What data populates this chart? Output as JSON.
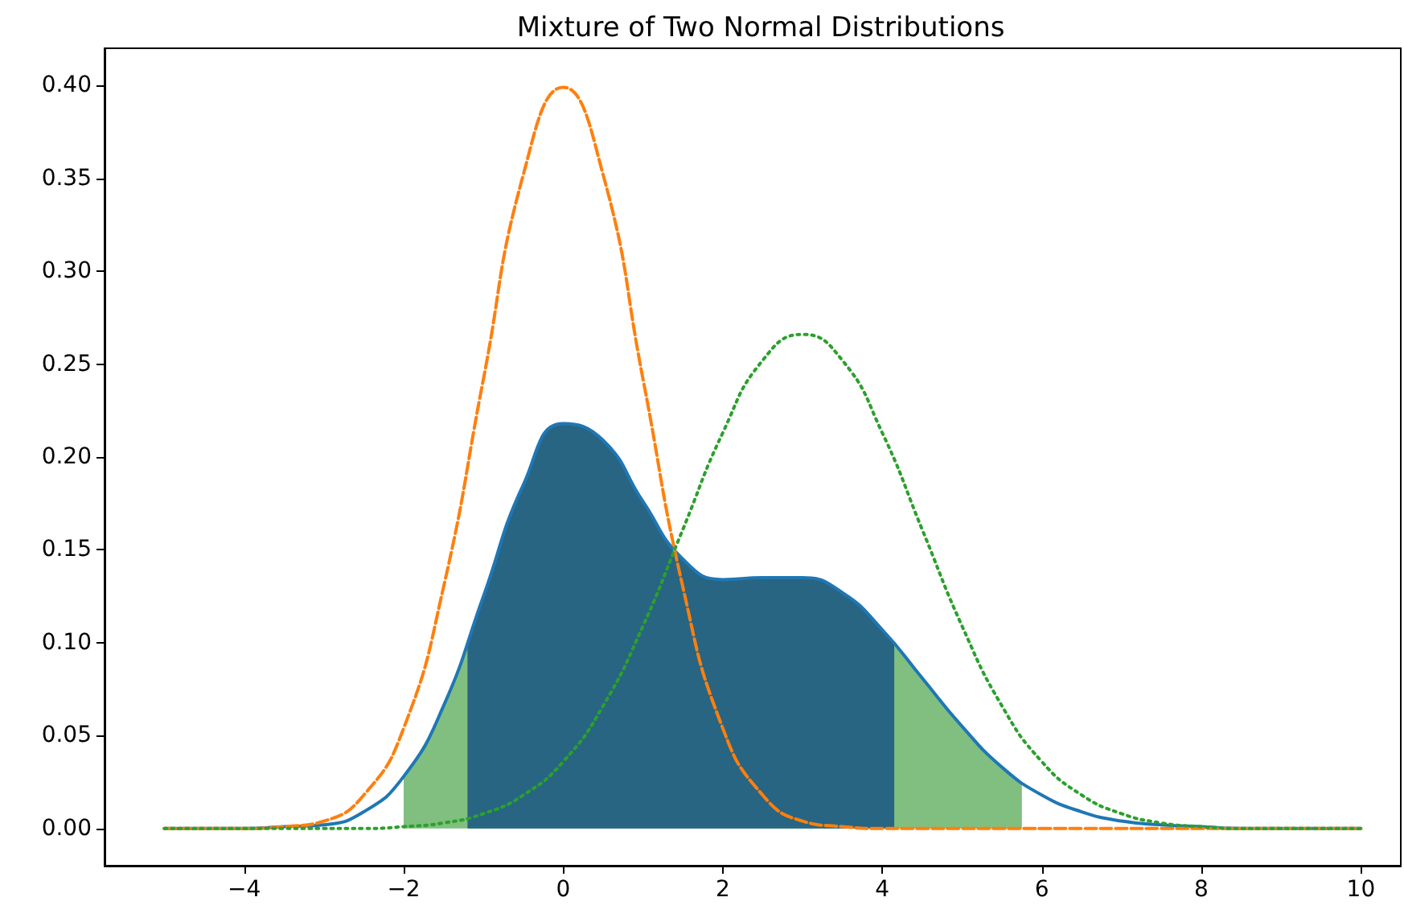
{
  "chart_data": {
    "type": "line",
    "title": "Mixture of Two Normal Distributions",
    "marker": "none",
    "grid": false,
    "x": [
      -5,
      -4.5,
      -4,
      -3.5,
      -3,
      -2.5,
      -2,
      -1.5,
      -1,
      -0.5,
      0,
      0.5,
      1,
      1.5,
      2,
      2.5,
      3,
      3.5,
      4,
      4.5,
      5,
      5.5,
      6,
      6.5,
      7,
      7.5,
      8,
      8.5,
      9,
      9.5,
      10
    ],
    "series": [
      {
        "type": "area",
        "color": "#80bf80",
        "x": [
          -2,
          -1.5,
          -1,
          -0.5,
          0,
          0.5,
          1,
          1.5,
          2,
          2.5,
          3,
          3.5,
          4,
          4.5,
          5,
          5.5,
          5.75
        ],
        "values": [
          0.028,
          0.066,
          0.125,
          0.185,
          0.218,
          0.209,
          0.176,
          0.145,
          0.134,
          0.135,
          0.135,
          0.127,
          0.107,
          0.081,
          0.055,
          0.033,
          0.025
        ]
      },
      {
        "type": "area",
        "color": "#276583",
        "x": [
          -1.2,
          -1,
          -0.5,
          0,
          0.5,
          1,
          1.5,
          2,
          2.5,
          3,
          3.5,
          4,
          4.15
        ],
        "values": [
          0.1,
          0.125,
          0.185,
          0.218,
          0.209,
          0.176,
          0.145,
          0.134,
          0.135,
          0.135,
          0.127,
          0.107,
          0.099
        ]
      },
      {
        "color": "#1f77b4",
        "line_style": "solid",
        "values": [
          0,
          0,
          0,
          0.001,
          0.002,
          0.009,
          0.028,
          0.066,
          0.125,
          0.185,
          0.218,
          0.209,
          0.176,
          0.145,
          0.134,
          0.135,
          0.135,
          0.127,
          0.107,
          0.081,
          0.055,
          0.033,
          0.018,
          0.009,
          0.004,
          0.002,
          0.001,
          0,
          0,
          0,
          0
        ]
      },
      {
        "color": "#ff7f0e",
        "line_style": "dashed",
        "values": [
          0,
          0,
          0,
          0.001,
          0.004,
          0.018,
          0.054,
          0.13,
          0.242,
          0.352,
          0.399,
          0.352,
          0.242,
          0.13,
          0.054,
          0.018,
          0.004,
          0.001,
          0,
          0,
          0,
          0,
          0,
          0,
          0,
          0,
          0,
          0,
          0,
          0,
          0
        ]
      },
      {
        "color": "#2ca02c",
        "line_style": "dotted",
        "values": [
          0,
          0,
          0,
          0,
          0,
          0,
          0.001,
          0.003,
          0.008,
          0.018,
          0.036,
          0.066,
          0.109,
          0.161,
          0.213,
          0.252,
          0.266,
          0.252,
          0.213,
          0.161,
          0.109,
          0.066,
          0.036,
          0.018,
          0.008,
          0.003,
          0.001,
          0,
          0,
          0,
          0
        ]
      }
    ],
    "xlim": [
      -5.75,
      10.5
    ],
    "xticks": [
      {
        "value": -4,
        "label": "−4"
      },
      {
        "value": -2,
        "label": "−2"
      },
      0,
      2,
      4,
      6,
      8,
      10
    ],
    "ylim": [
      -0.02,
      0.42
    ],
    "yticks": [
      {
        "value": 0,
        "label": "0.00"
      },
      {
        "value": 0.05,
        "label": "0.05"
      },
      {
        "value": 0.1,
        "label": "0.10"
      },
      {
        "value": 0.15,
        "label": "0.15"
      },
      {
        "value": 0.2,
        "label": "0.20"
      },
      {
        "value": 0.25,
        "label": "0.25"
      },
      {
        "value": 0.3,
        "label": "0.30"
      },
      {
        "value": 0.35,
        "label": "0.35"
      },
      {
        "value": 0.4,
        "label": "0.40"
      }
    ]
  }
}
